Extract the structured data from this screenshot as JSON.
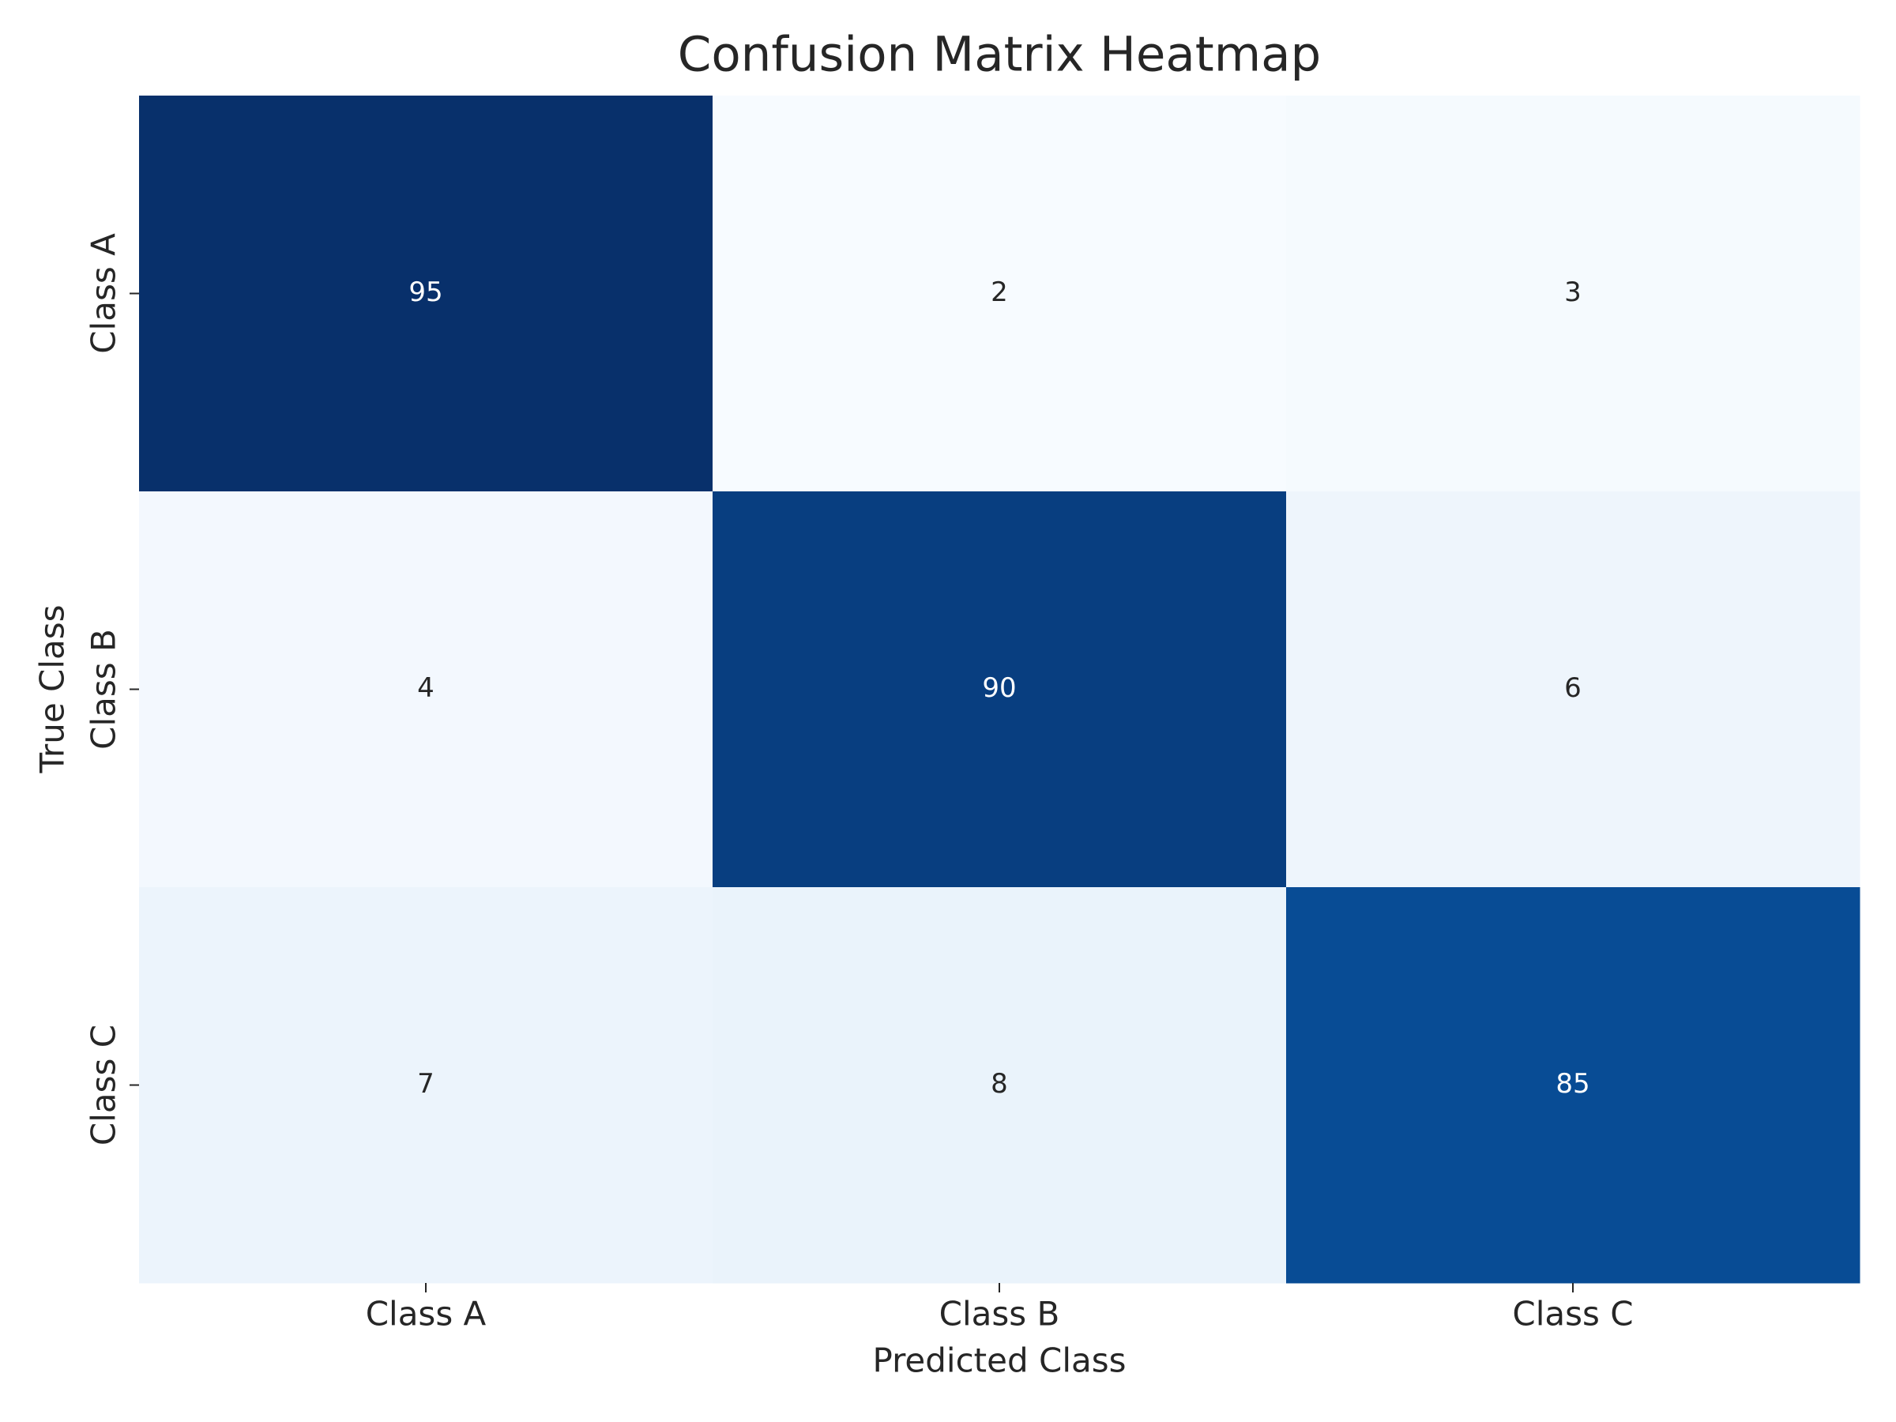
{
  "chart_data": {
    "type": "heatmap",
    "title": "Confusion Matrix Heatmap",
    "x_label": "Predicted Class",
    "y_label": "True Class",
    "x_categories": [
      "Class A",
      "Class B",
      "Class C"
    ],
    "y_categories": [
      "Class A",
      "Class B",
      "Class C"
    ],
    "values": [
      [
        95,
        2,
        3
      ],
      [
        4,
        90,
        6
      ],
      [
        7,
        8,
        85
      ]
    ],
    "colormap": "Blues"
  }
}
